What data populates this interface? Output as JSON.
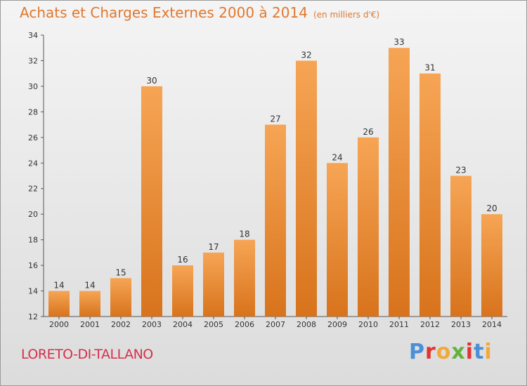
{
  "title": "Achats et Charges Externes 2000 à 2014",
  "subtitle": "(en milliers d'€)",
  "place": "LORETO-DI-TALLANO",
  "brand": {
    "text": "Proxiti",
    "letter_colors": [
      "#4a8fd8",
      "#e3342f",
      "#f2a93b",
      "#63b23b",
      "#e3342f",
      "#4a8fd8",
      "#f2a93b"
    ]
  },
  "colors": {
    "title": "#e0782f",
    "bar_light": "#f6a555",
    "bar_dark": "#d8731c",
    "place": "#d62f4a"
  },
  "chart_data": {
    "type": "bar",
    "categories": [
      "2000",
      "2001",
      "2002",
      "2003",
      "2004",
      "2005",
      "2006",
      "2007",
      "2008",
      "2009",
      "2010",
      "2011",
      "2012",
      "2013",
      "2014"
    ],
    "values": [
      14,
      14,
      15,
      30,
      16,
      17,
      18,
      27,
      32,
      24,
      26,
      33,
      31,
      23,
      20
    ],
    "ylim": [
      12,
      34
    ],
    "yticks": [
      12,
      14,
      16,
      18,
      20,
      22,
      24,
      26,
      28,
      30,
      32,
      34
    ],
    "grid": false
  }
}
